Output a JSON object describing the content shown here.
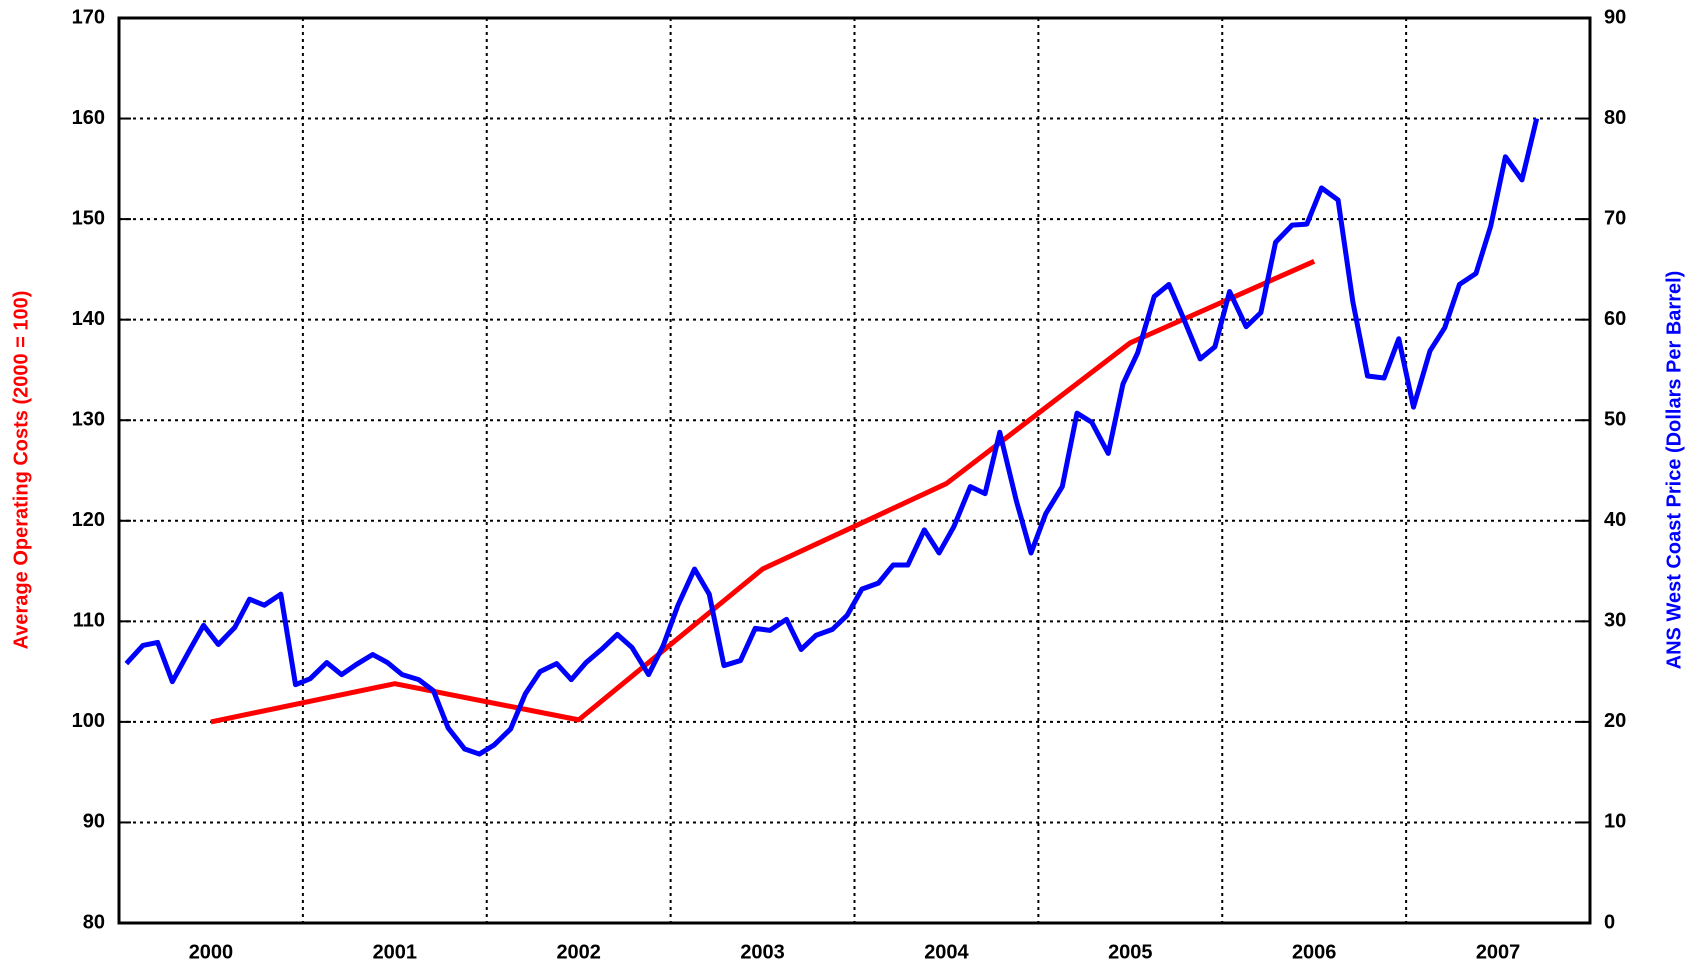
{
  "chart_data": {
    "type": "line",
    "ylabel": "Average Operating Costs (2000 = 100)",
    "y2label": "ANS West Coast Price (Dollars Per Barrel)",
    "categories": [
      "2000",
      "2001",
      "2002",
      "2003",
      "2004",
      "2005",
      "2006",
      "2007"
    ],
    "xlim": [
      2000,
      2008
    ],
    "xticks": [
      2001,
      2002,
      2003,
      2004,
      2005,
      2006,
      2007
    ],
    "ylim": [
      80,
      170
    ],
    "yticks": [
      80,
      90,
      100,
      110,
      120,
      130,
      140,
      150,
      160,
      170
    ],
    "y2lim": [
      0,
      90
    ],
    "y2ticks": [
      0,
      10,
      20,
      30,
      40,
      50,
      60,
      70,
      80,
      90
    ],
    "grid": true,
    "series": [
      {
        "name": "Average Operating Costs",
        "color": "#ff0000",
        "axis": "y",
        "x": [
          2000.5,
          2001.5,
          2002.5,
          2003.5,
          2004.5,
          2005.5,
          2006.5
        ],
        "values": [
          100,
          103.8,
          100.2,
          115.2,
          123.7,
          137.7,
          145.8
        ]
      },
      {
        "name": "ANS West Coast Price",
        "color": "#0000ff",
        "axis": "y2",
        "x": [
          2000.04,
          2000.13,
          2000.21,
          2000.29,
          2000.38,
          2000.46,
          2000.54,
          2000.63,
          2000.71,
          2000.79,
          2000.88,
          2000.96,
          2001.04,
          2001.13,
          2001.21,
          2001.29,
          2001.38,
          2001.46,
          2001.54,
          2001.63,
          2001.71,
          2001.79,
          2001.88,
          2001.96,
          2002.04,
          2002.13,
          2002.21,
          2002.29,
          2002.38,
          2002.46,
          2002.54,
          2002.63,
          2002.71,
          2002.79,
          2002.88,
          2002.96,
          2003.04,
          2003.13,
          2003.21,
          2003.29,
          2003.38,
          2003.46,
          2003.54,
          2003.63,
          2003.71,
          2003.79,
          2003.88,
          2003.96,
          2004.04,
          2004.13,
          2004.21,
          2004.29,
          2004.38,
          2004.46,
          2004.54,
          2004.63,
          2004.71,
          2004.79,
          2004.88,
          2004.96,
          2005.04,
          2005.13,
          2005.21,
          2005.29,
          2005.38,
          2005.46,
          2005.54,
          2005.63,
          2005.71,
          2005.79,
          2005.88,
          2005.96,
          2006.04,
          2006.13,
          2006.21,
          2006.29,
          2006.38,
          2006.46,
          2006.54,
          2006.63,
          2006.71,
          2006.79,
          2006.88,
          2006.96,
          2007.04,
          2007.13,
          2007.21,
          2007.29,
          2007.38,
          2007.46,
          2007.54,
          2007.63,
          2007.71
        ],
        "values": [
          25.8,
          27.6,
          27.9,
          24,
          27,
          29.6,
          27.7,
          29.4,
          32.2,
          31.6,
          32.7,
          23.7,
          24.3,
          25.9,
          24.7,
          25.7,
          26.7,
          25.9,
          24.7,
          24.2,
          23.1,
          19.4,
          17.3,
          16.8,
          17.7,
          19.3,
          22.8,
          25,
          25.8,
          24.2,
          25.9,
          27.3,
          28.7,
          27.4,
          24.7,
          27.6,
          31.6,
          35.2,
          32.7,
          25.6,
          26.1,
          29.3,
          29.1,
          30.2,
          27.2,
          28.6,
          29.2,
          30.6,
          33.2,
          33.8,
          35.6,
          35.6,
          39.1,
          36.8,
          39.4,
          43.4,
          42.7,
          48.8,
          42,
          36.8,
          40.7,
          43.4,
          50.7,
          49.8,
          46.7,
          53.6,
          56.7,
          62.3,
          63.5,
          60.1,
          56.1,
          57.3,
          62.8,
          59.3,
          60.7,
          67.7,
          69.4,
          69.5,
          73.1,
          71.9,
          61.8,
          54.4,
          54.2,
          58.1,
          51.3,
          56.9,
          59.2,
          63.5,
          64.6,
          69.3,
          76.2,
          73.9,
          80
        ]
      }
    ]
  }
}
